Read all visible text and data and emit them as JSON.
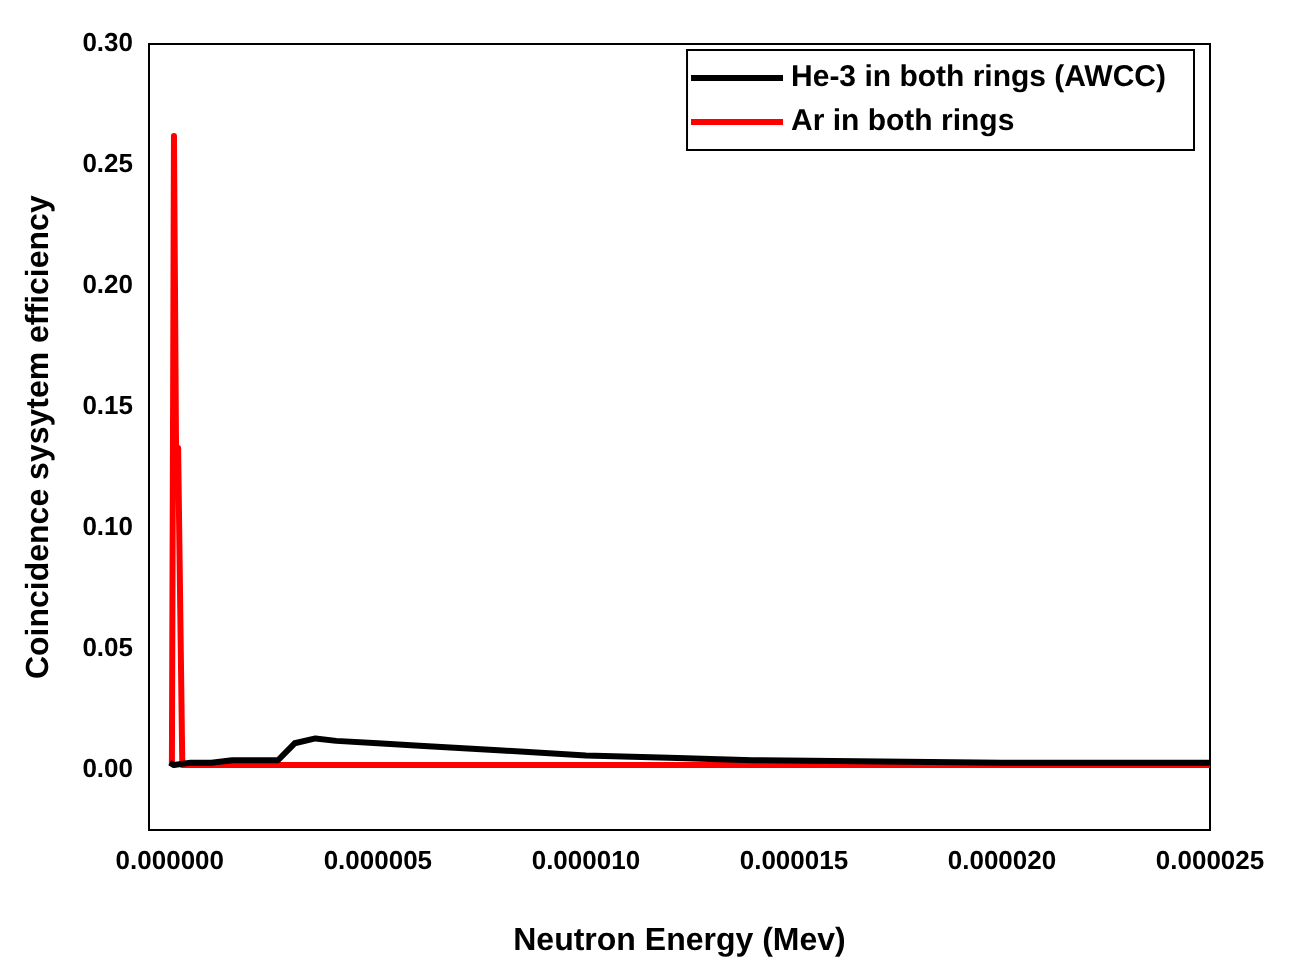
{
  "chart_data": {
    "type": "line",
    "xlabel": "Neutron Energy (Mev)",
    "ylabel": "Coincidence sysytem efficiency",
    "xlim": [
      -5e-07,
      2.5e-05
    ],
    "xticks": [
      {
        "value": 0,
        "label": "0.000000"
      },
      {
        "value": 5e-06,
        "label": "0.000005"
      },
      {
        "value": 1e-05,
        "label": "0.000010"
      },
      {
        "value": 1.5e-05,
        "label": "0.000015"
      },
      {
        "value": 2e-05,
        "label": "0.000020"
      },
      {
        "value": 2.5e-05,
        "label": "0.000025"
      }
    ],
    "ylim": [
      -0.025,
      0.3
    ],
    "yticks": [
      {
        "value": 0,
        "label": "0.00"
      },
      {
        "value": 0.05,
        "label": "0.05"
      },
      {
        "value": 0.1,
        "label": "0.10"
      },
      {
        "value": 0.15,
        "label": "0.15"
      },
      {
        "value": 0.2,
        "label": "0.20"
      },
      {
        "value": 0.25,
        "label": "0.25"
      },
      {
        "value": 0.3,
        "label": "0.30"
      }
    ],
    "grid": false,
    "legend": "top right",
    "marker": "none",
    "series": [
      {
        "name": "He-3 in both rings (AWCC)",
        "color": "#000000",
        "x": [
          0,
          1e-07,
          5e-07,
          1e-06,
          1.5e-06,
          2e-06,
          2.6e-06,
          3e-06,
          3.5e-06,
          4e-06,
          5e-06,
          6e-06,
          8e-06,
          1e-05,
          1.2e-05,
          1.4e-05,
          2e-05,
          2.5e-05
        ],
        "values": [
          0.003,
          0.002,
          0.003,
          0.003,
          0.004,
          0.004,
          0.004,
          0.011,
          0.013,
          0.012,
          0.011,
          0.01,
          0.008,
          0.006,
          0.005,
          0.004,
          0.003,
          0.003
        ]
      },
      {
        "name": "Ar in both rings",
        "color": "#ff0000",
        "x": [
          5e-08,
          1e-07,
          1.5e-07,
          2e-07,
          3e-07,
          2.5e-05
        ],
        "values": [
          0.002,
          0.262,
          0.133,
          0.133,
          0.002,
          0.002
        ]
      }
    ]
  }
}
